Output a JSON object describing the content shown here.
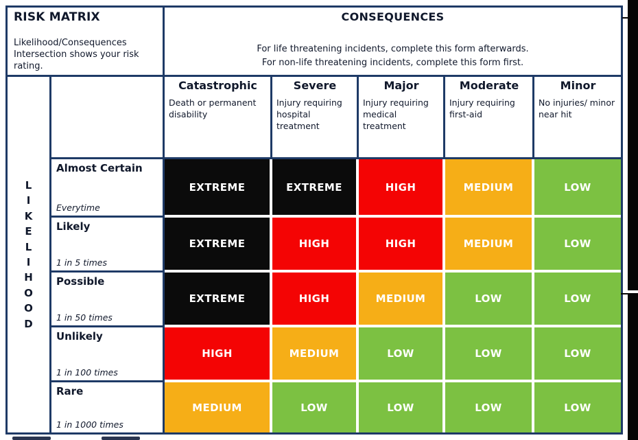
{
  "header": {
    "title": "RISK MATRIX",
    "subtitle": "Likelihood/Consequences Intersection shows your risk rating.",
    "consequences_title": "CONSEQUENCES",
    "consequences_note_1": "For life threatening incidents, complete this form afterwards.",
    "consequences_note_2": "For non-life threatening incidents, complete this form first."
  },
  "consequence_columns": [
    {
      "name": "Catastrophic",
      "description": "Death or permanent disability"
    },
    {
      "name": "Severe",
      "description": "Injury requiring hospital treatment"
    },
    {
      "name": "Major",
      "description": "Injury requiring medical treatment"
    },
    {
      "name": "Moderate",
      "description": "Injury requiring first-aid"
    },
    {
      "name": "Minor",
      "description": "No injuries/ minor near hit"
    }
  ],
  "likelihood_axis": {
    "label": "LIKELIHOOD",
    "letters": [
      "L",
      "I",
      "K",
      "E",
      "L",
      "I",
      "H",
      "O",
      "O",
      "D"
    ]
  },
  "likelihood_rows": [
    {
      "name": "Almost Certain",
      "frequency": "Everytime"
    },
    {
      "name": "Likely",
      "frequency": "1 in 5 times"
    },
    {
      "name": "Possible",
      "frequency": "1 in 50 times"
    },
    {
      "name": "Unlikely",
      "frequency": "1 in 100 times"
    },
    {
      "name": "Rare",
      "frequency": "1 in 1000 times"
    }
  ],
  "matrix": {
    "rows": [
      [
        "EXTREME",
        "EXTREME",
        "HIGH",
        "MEDIUM",
        "LOW"
      ],
      [
        "EXTREME",
        "HIGH",
        "HIGH",
        "MEDIUM",
        "LOW"
      ],
      [
        "EXTREME",
        "HIGH",
        "MEDIUM",
        "LOW",
        "LOW"
      ],
      [
        "HIGH",
        "MEDIUM",
        "LOW",
        "LOW",
        "LOW"
      ],
      [
        "MEDIUM",
        "LOW",
        "LOW",
        "LOW",
        "LOW"
      ]
    ]
  },
  "colors": {
    "extreme": "#0b0b0b",
    "high": "#f40404",
    "medium": "#f6ae17",
    "low": "#7cc142",
    "border_navy": "#1e3a66",
    "cell_text": "#ffffff"
  }
}
